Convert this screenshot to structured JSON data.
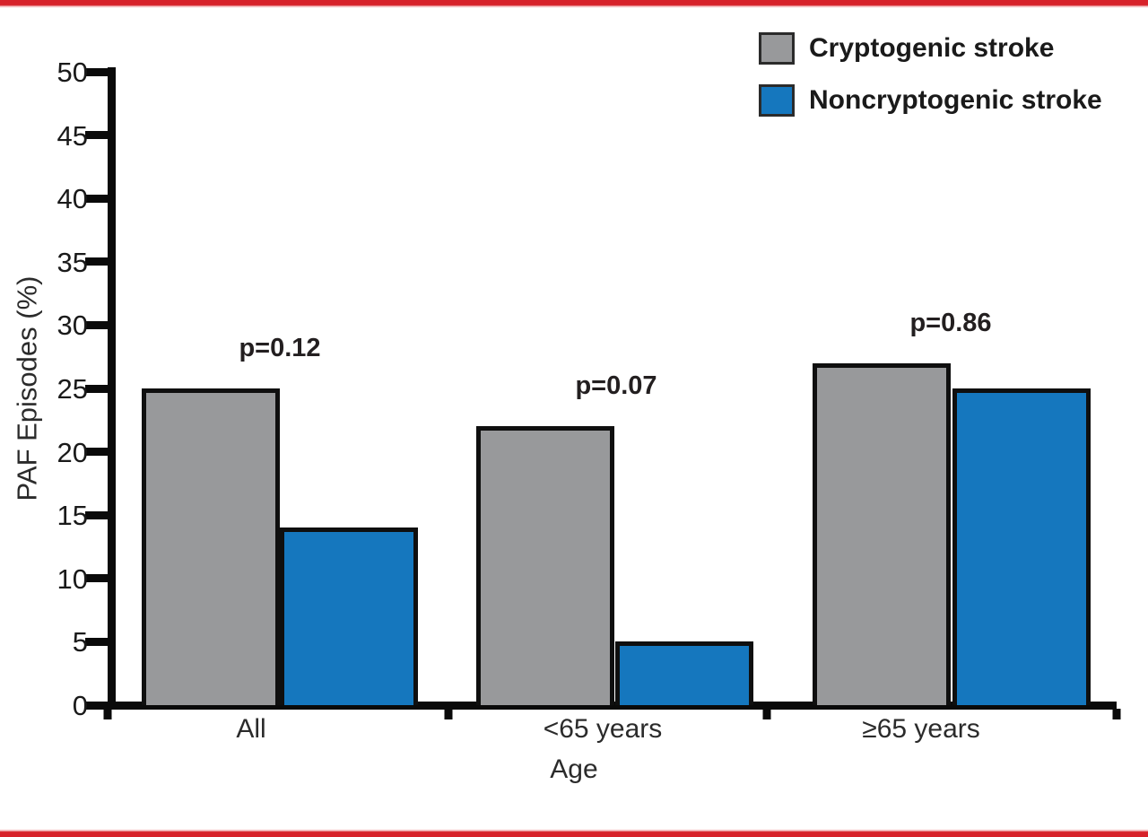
{
  "accents": {
    "rule_color": "#D7222A",
    "axis_color": "#0A0A0A",
    "text_color": "#1A1A1A"
  },
  "legend": {
    "items": [
      {
        "label": "Cryptogenic stroke",
        "color": "#98999B"
      },
      {
        "label": "Noncryptogenic stroke",
        "color": "#1577BE"
      }
    ]
  },
  "chart_data": {
    "type": "bar",
    "categories": [
      "All",
      "<65 years",
      "≥65 years"
    ],
    "series": [
      {
        "name": "Cryptogenic stroke",
        "color": "#98999B",
        "values": [
          25,
          22,
          27
        ]
      },
      {
        "name": "Noncryptogenic stroke",
        "color": "#1577BE",
        "values": [
          14,
          5,
          25
        ]
      }
    ],
    "p_values": [
      "p=0.12",
      "p=0.07",
      "p=0.86"
    ],
    "title": "",
    "xlabel": "Age",
    "ylabel": "PAF Episodes (%)",
    "ylim": [
      0,
      50
    ],
    "ytick_step": 5,
    "yticks": [
      0,
      5,
      10,
      15,
      20,
      25,
      30,
      35,
      40,
      45,
      50
    ],
    "grid": false,
    "legend_position": "top-right"
  }
}
